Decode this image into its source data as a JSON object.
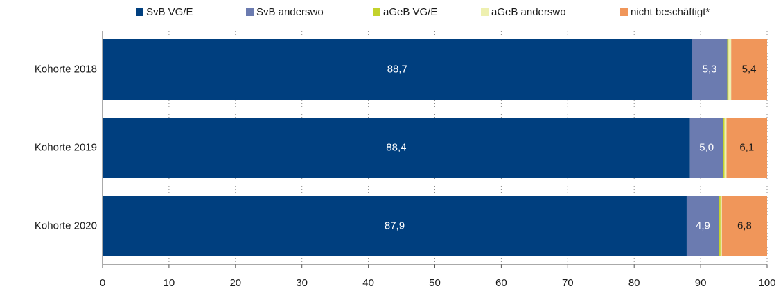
{
  "chart_data": {
    "type": "stacked-bar-horizontal",
    "categories": [
      "Kohorte 2018",
      "Kohorte 2019",
      "Kohorte 2020"
    ],
    "series": [
      {
        "name": "SvB VG/E",
        "color": "#003f7f",
        "values": [
          88.7,
          88.4,
          87.9
        ],
        "value_labels": [
          "88,7",
          "88,4",
          "87,9"
        ]
      },
      {
        "name": "SvB anderswo",
        "color": "#6b7bb0",
        "values": [
          5.3,
          5.0,
          4.9
        ],
        "value_labels": [
          "5,3",
          "5,0",
          "4,9"
        ]
      },
      {
        "name": "aGeB VG/E",
        "color": "#c3d22c",
        "values": [
          0.2,
          0.2,
          0.2
        ]
      },
      {
        "name": "aGeB anderswo",
        "color": "#eef0b0",
        "values": [
          0.4,
          0.3,
          0.2
        ]
      },
      {
        "name": "nicht beschäftigt*",
        "color": "#f0965a",
        "values": [
          5.4,
          6.1,
          6.8
        ],
        "value_labels": [
          "5,4",
          "6,1",
          "6,8"
        ]
      }
    ],
    "xlim": [
      0,
      100
    ],
    "xticks": [
      0,
      10,
      20,
      30,
      40,
      50,
      60,
      70,
      80,
      90,
      100
    ],
    "grid": true
  }
}
